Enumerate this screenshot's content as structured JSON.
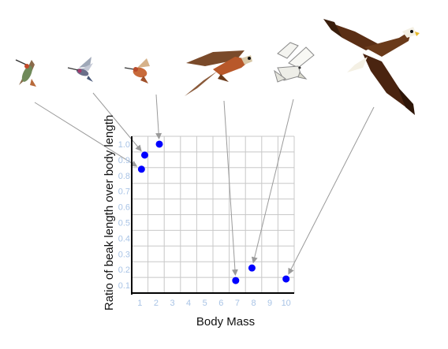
{
  "chart_data": {
    "type": "scatter",
    "title": "",
    "xlabel": "Body Mass",
    "ylabel": "Ratio of beak length over body length",
    "xlim": [
      0.5,
      10.5
    ],
    "ylim": [
      0.05,
      1.05
    ],
    "x_ticks": [
      "1",
      "2",
      "3",
      "4",
      "5",
      "6",
      "7",
      "8",
      "9",
      "10"
    ],
    "y_ticks": [
      "0.1",
      "0.2",
      "0.3",
      "0.4",
      "0.5",
      "0.6",
      "0.7",
      "0.8",
      "0.9",
      "1.0"
    ],
    "grid": true,
    "series": [
      {
        "points": [
          {
            "x": 1.1,
            "y": 0.84,
            "bird": "hummingbird-1"
          },
          {
            "x": 1.3,
            "y": 0.93,
            "bird": "hummingbird-2"
          },
          {
            "x": 2.2,
            "y": 1.0,
            "bird": "hummingbird-3"
          },
          {
            "x": 6.9,
            "y": 0.13,
            "bird": "kestrel"
          },
          {
            "x": 7.9,
            "y": 0.21,
            "bird": "white-falcon"
          },
          {
            "x": 10.0,
            "y": 0.14,
            "bird": "eagle"
          }
        ]
      }
    ],
    "colors": {
      "points": "#0000ff",
      "grid": "#c8c8c8",
      "tick_labels": "#a9c4e6",
      "axis_line": "#000000"
    }
  },
  "birds": [
    {
      "name": "hummingbird-1",
      "icon": "hummingbird-icon"
    },
    {
      "name": "hummingbird-2",
      "icon": "hummingbird-icon"
    },
    {
      "name": "hummingbird-3",
      "icon": "hummingbird-icon"
    },
    {
      "name": "kestrel",
      "icon": "kestrel-icon"
    },
    {
      "name": "white-falcon",
      "icon": "falcon-icon"
    },
    {
      "name": "eagle",
      "icon": "eagle-icon"
    }
  ]
}
